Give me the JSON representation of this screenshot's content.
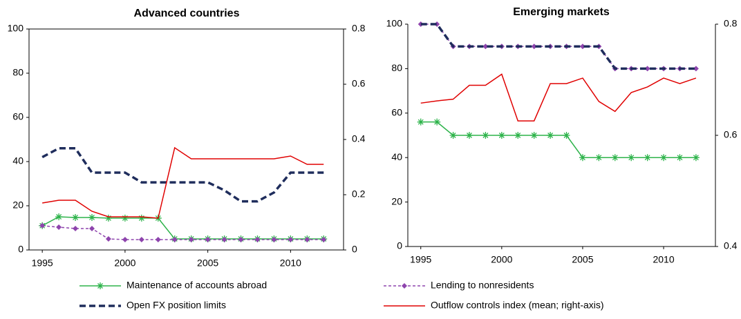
{
  "chart_data": [
    {
      "type": "line",
      "title": "Advanced countries",
      "x": [
        1995,
        1996,
        1997,
        1998,
        1999,
        2000,
        2001,
        2002,
        2003,
        2004,
        2005,
        2006,
        2007,
        2008,
        2009,
        2010,
        2011,
        2012
      ],
      "xlim": [
        1994.2,
        2013.2
      ],
      "xticks": [
        1995,
        2000,
        2005,
        2010
      ],
      "ylim": [
        0,
        100
      ],
      "yticks": [
        0,
        20,
        40,
        60,
        80,
        100
      ],
      "y2lim": [
        0,
        0.8
      ],
      "y2ticks": [
        0,
        0.2,
        0.4,
        0.6,
        0.8
      ],
      "series": [
        {
          "name": "Maintenance of accounts abroad",
          "color": "#2db34a",
          "marker": "star",
          "dash": false,
          "values": [
            11,
            15,
            14.7,
            14.7,
            14.4,
            14.4,
            14.4,
            14.4,
            5,
            5,
            5,
            5,
            5,
            5,
            5,
            5,
            5,
            5
          ]
        },
        {
          "name": "Lending to nonresidents",
          "color": "#8e44ad",
          "marker": "diamond",
          "dash": true,
          "values": [
            11,
            10.3,
            9.7,
            9.7,
            5,
            4.7,
            4.7,
            4.7,
            4.7,
            4.7,
            4.7,
            4.7,
            4.7,
            4.7,
            4.7,
            4.7,
            4.7,
            4.7
          ]
        },
        {
          "name": "Open FX position limits",
          "color": "#1f2d5c",
          "marker": "none",
          "dash": true,
          "values": [
            42,
            46,
            46,
            35,
            35,
            35,
            30.6,
            30.6,
            30.6,
            30.6,
            30.6,
            27,
            22,
            22,
            26,
            35,
            35,
            35
          ]
        },
        {
          "name": "Outflow controls index (mean; right-axis)",
          "color": "#e00000",
          "marker": "none",
          "dash": false,
          "axis": "y2",
          "values": [
            0.17,
            0.18,
            0.18,
            0.14,
            0.12,
            0.12,
            0.12,
            0.115,
            0.37,
            0.33,
            0.33,
            0.33,
            0.33,
            0.33,
            0.33,
            0.34,
            0.31,
            0.31
          ]
        }
      ]
    },
    {
      "type": "line",
      "title": "Emerging markets",
      "x": [
        1995,
        1996,
        1997,
        1998,
        1999,
        2000,
        2001,
        2002,
        2003,
        2004,
        2005,
        2006,
        2007,
        2008,
        2009,
        2010,
        2011,
        2012
      ],
      "xlim": [
        1994.2,
        2013.2
      ],
      "xticks": [
        1995,
        2000,
        2005,
        2010
      ],
      "ylim": [
        0,
        100
      ],
      "yticks": [
        0,
        20,
        40,
        60,
        80,
        100
      ],
      "y2lim": [
        0.4,
        0.8
      ],
      "y2ticks": [
        0.4,
        0.6,
        0.8
      ],
      "series": [
        {
          "color": "#2db34a",
          "marker": "star",
          "dash": false,
          "values": [
            56,
            56,
            50,
            50,
            50,
            50,
            50,
            50,
            50,
            50,
            40,
            40,
            40,
            40,
            40,
            40,
            40,
            40
          ]
        },
        {
          "color": "#8e44ad",
          "marker": "diamond",
          "dash": true,
          "values": [
            100,
            100,
            90,
            90,
            90,
            90,
            90,
            90,
            90,
            90,
            90,
            90,
            80,
            80,
            80,
            80,
            80,
            80
          ]
        },
        {
          "color": "#1f2d5c",
          "marker": "none",
          "dash": true,
          "values": [
            100,
            100,
            90,
            90,
            90,
            90,
            90,
            90,
            90,
            90,
            90,
            90,
            80,
            80,
            80,
            80,
            80,
            80
          ]
        },
        {
          "color": "#e00000",
          "marker": "none",
          "dash": false,
          "axis": "y2",
          "values": [
            0.658,
            0.662,
            0.665,
            0.69,
            0.69,
            0.71,
            0.626,
            0.626,
            0.693,
            0.693,
            0.703,
            0.661,
            0.643,
            0.677,
            0.687,
            0.703,
            0.693,
            0.703
          ]
        }
      ]
    }
  ]
}
